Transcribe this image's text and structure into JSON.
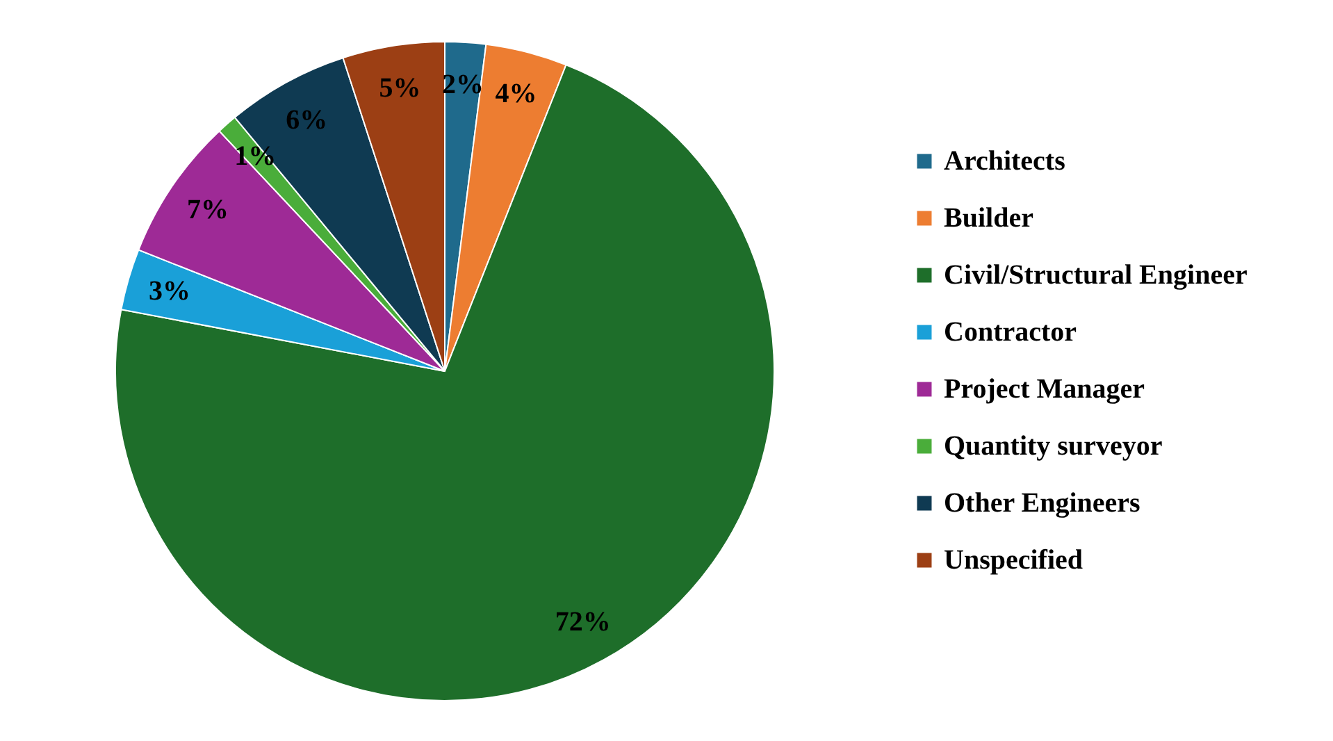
{
  "chart_data": {
    "type": "pie",
    "categories": [
      "Architects",
      "Builder",
      "Civil/Structural Engineer",
      "Contractor",
      "Project Manager",
      "Quantity surveyor",
      "Other Engineers",
      "Unspecified"
    ],
    "values": [
      2,
      4,
      72,
      3,
      7,
      1,
      6,
      5
    ],
    "value_labels": [
      "2%",
      "4%",
      "72%",
      "3%",
      "7%",
      "1%",
      "6%",
      "5%"
    ],
    "colors": [
      "#1f6a8c",
      "#ed7d31",
      "#1e6e2a",
      "#1aa0d8",
      "#9e2a96",
      "#4aad3a",
      "#0f3a52",
      "#9c3f14"
    ],
    "legend": "right"
  }
}
